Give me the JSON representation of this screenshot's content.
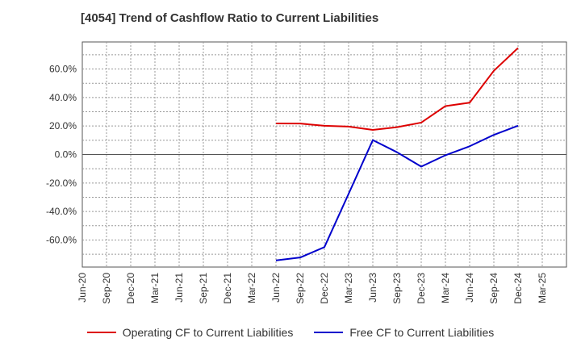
{
  "chart_data": {
    "type": "line",
    "title": "[4054]  Trend of Cashflow Ratio to Current Liabilities",
    "x": [
      "Jun-20",
      "Sep-20",
      "Dec-20",
      "Mar-21",
      "Jun-21",
      "Sep-21",
      "Dec-21",
      "Mar-22",
      "Jun-22",
      "Sep-22",
      "Dec-22",
      "Mar-23",
      "Jun-23",
      "Sep-23",
      "Dec-23",
      "Mar-24",
      "Jun-24",
      "Sep-24",
      "Dec-24",
      "Mar-25"
    ],
    "y_ticks": [
      "60.0%",
      "40.0%",
      "20.0%",
      "0.0%",
      "-20.0%",
      "-40.0%",
      "-60.0%"
    ],
    "y_tick_values": [
      60,
      40,
      20,
      0,
      -20,
      -40,
      -60
    ],
    "ylim": [
      -79,
      79
    ],
    "grid": true,
    "legend_position": "bottom",
    "series": [
      {
        "name": "Operating CF to Current Liabilities",
        "color": "#dd0000",
        "values": [
          null,
          null,
          null,
          null,
          null,
          null,
          null,
          null,
          21.8,
          21.7,
          20.2,
          19.6,
          17.3,
          19.2,
          22.4,
          34.0,
          36.4,
          58.8,
          74.8,
          null
        ]
      },
      {
        "name": "Free CF to Current Liabilities",
        "color": "#0000cc",
        "values": [
          null,
          null,
          null,
          null,
          null,
          null,
          null,
          null,
          -74.3,
          -72.3,
          -65.0,
          -27.6,
          10.1,
          1.6,
          -8.5,
          -0.5,
          5.8,
          13.8,
          20.2,
          null
        ]
      }
    ]
  }
}
